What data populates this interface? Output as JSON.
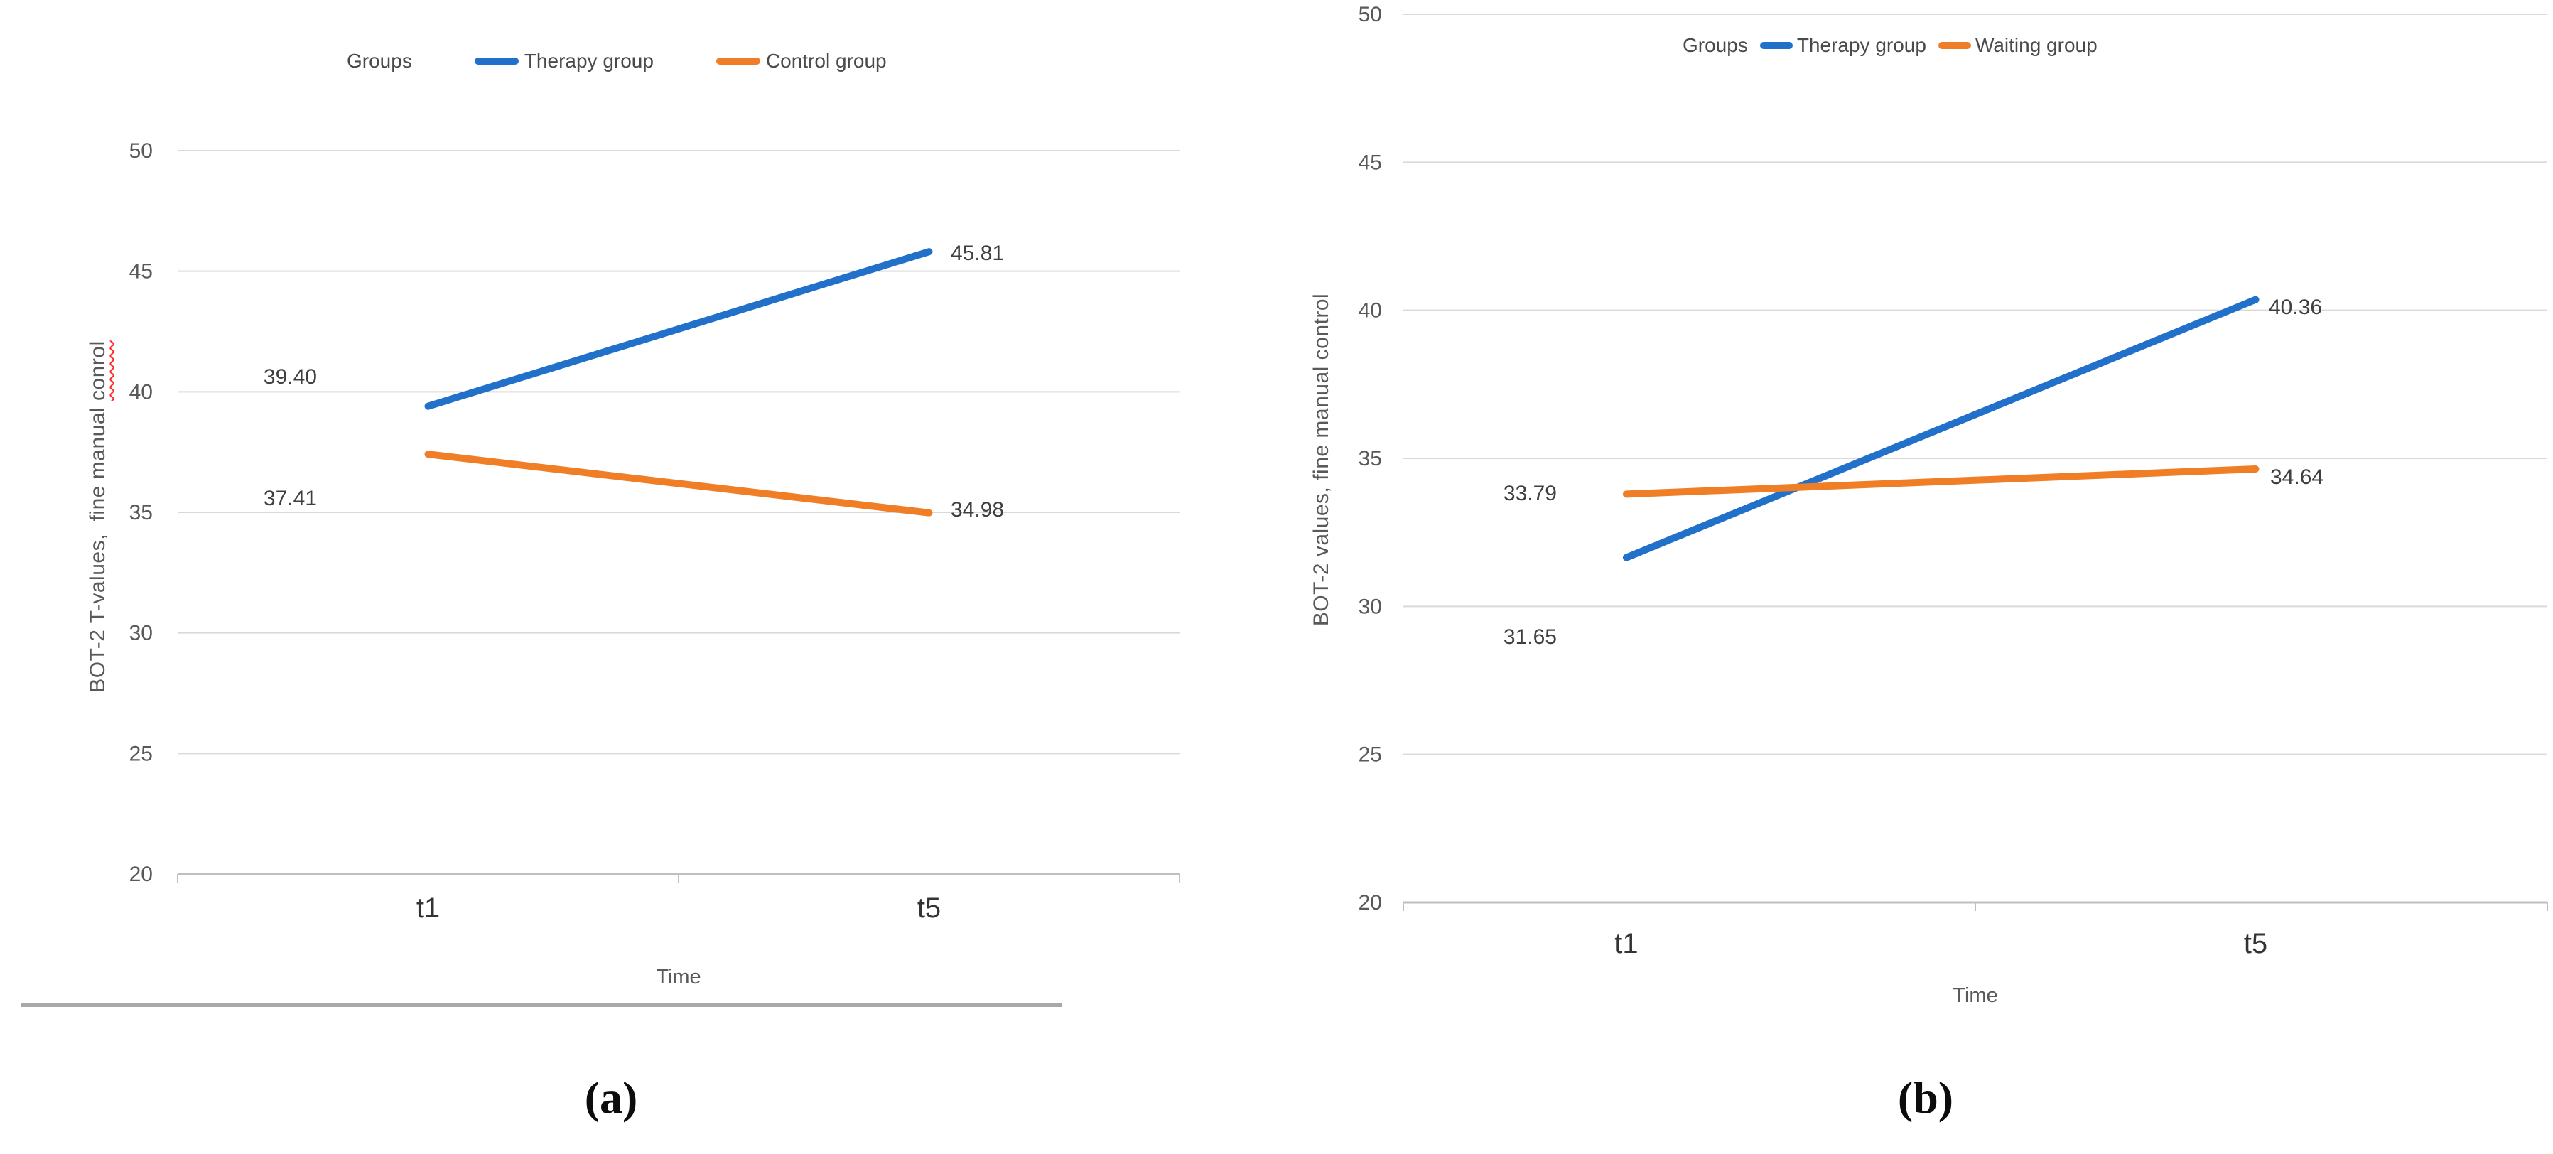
{
  "colors": {
    "therapy_blue": "#2170C9",
    "group2_orange": "#F07E26",
    "gridline": "#D9D9D9",
    "axis_line": "#BFBFBF",
    "separator": "#A8A8A8",
    "spellcheck_red": "#FF2A2A"
  },
  "captions": {
    "left": "(a)",
    "right": "(b)"
  },
  "chart_data": [
    {
      "id": "a",
      "type": "line",
      "legend": {
        "title": "Groups",
        "position": "top"
      },
      "categories": [
        "t1",
        "t5"
      ],
      "x": [
        "t1",
        "t5"
      ],
      "series": [
        {
          "name": "Therapy group",
          "color": "therapy_blue",
          "values": [
            39.4,
            45.81
          ],
          "point_labels": [
            "39.40",
            "45.81"
          ]
        },
        {
          "name": "Control group",
          "color": "group2_orange",
          "values": [
            37.41,
            34.98
          ],
          "point_labels": [
            "37.41",
            "34.98"
          ]
        }
      ],
      "xlabel": "Time",
      "ylabel_text": "BOT-2 T-values,  fine manual ",
      "ylabel_misspelled": "conrol",
      "ylim": [
        20,
        50
      ],
      "yticks": [
        50,
        45,
        40,
        35,
        30,
        25,
        20
      ],
      "grid": "horizontal",
      "legend_position": "top"
    },
    {
      "id": "b",
      "type": "line",
      "legend": {
        "title": "Groups",
        "position": "top"
      },
      "categories": [
        "t1",
        "t5"
      ],
      "x": [
        "t1",
        "t5"
      ],
      "series": [
        {
          "name": "Therapy group",
          "color": "therapy_blue",
          "values": [
            31.65,
            40.36
          ],
          "point_labels": [
            "31.65",
            "40.36"
          ]
        },
        {
          "name": "Waiting group",
          "color": "group2_orange",
          "values": [
            33.79,
            34.64
          ],
          "point_labels": [
            "33.79",
            "34.64"
          ]
        }
      ],
      "xlabel": "Time",
      "ylabel_text": "BOT-2 values, fine manual control",
      "ylabel_misspelled": "",
      "ylim": [
        20,
        50
      ],
      "yticks": [
        50,
        45,
        40,
        35,
        30,
        25,
        20
      ],
      "grid": "horizontal",
      "legend_position": "top"
    }
  ]
}
